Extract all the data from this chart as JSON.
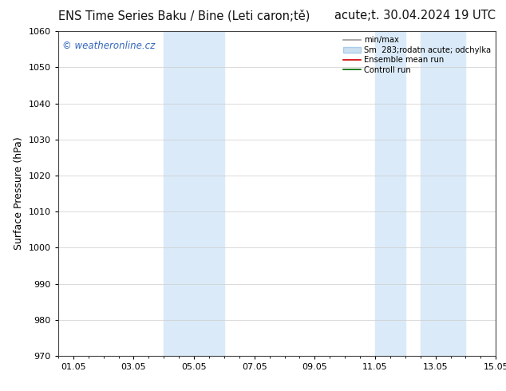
{
  "title_left": "ENS Time Series Baku / Bine (Leti caron;tě)",
  "title_right": "acute;t. 30.04.2024 19 UTC",
  "ylabel": "Surface Pressure (hPa)",
  "ylim": [
    970,
    1060
  ],
  "yticks": [
    970,
    980,
    990,
    1000,
    1010,
    1020,
    1030,
    1040,
    1050,
    1060
  ],
  "xlim_start": 0.0,
  "xlim_end": 14.5,
  "xtick_labels": [
    "01.05",
    "03.05",
    "05.05",
    "07.05",
    "09.05",
    "11.05",
    "13.05",
    "15.05"
  ],
  "xtick_positions": [
    0.5,
    2.5,
    4.5,
    6.5,
    8.5,
    10.5,
    12.5,
    14.5
  ],
  "shaded_regions": [
    {
      "xmin": 3.5,
      "xmax": 5.5,
      "color": "#daeaf8"
    },
    {
      "xmin": 10.5,
      "xmax": 11.5,
      "color": "#daeaf8"
    },
    {
      "xmin": 12.0,
      "xmax": 13.5,
      "color": "#daeaf8"
    }
  ],
  "watermark_text": "© weatheronline.cz",
  "watermark_color": "#3366bb",
  "legend_labels": [
    "min/max",
    "Sm  283;rodatn acute; odchylka",
    "Ensemble mean run",
    "Controll run"
  ],
  "legend_colors": [
    "#999999",
    "#cce0f0",
    "#cc0000",
    "#006600"
  ],
  "bg_color": "#ffffff",
  "grid_color": "#cccccc",
  "title_fontsize": 10.5,
  "axis_label_fontsize": 9,
  "tick_fontsize": 8,
  "watermark_fontsize": 8.5
}
